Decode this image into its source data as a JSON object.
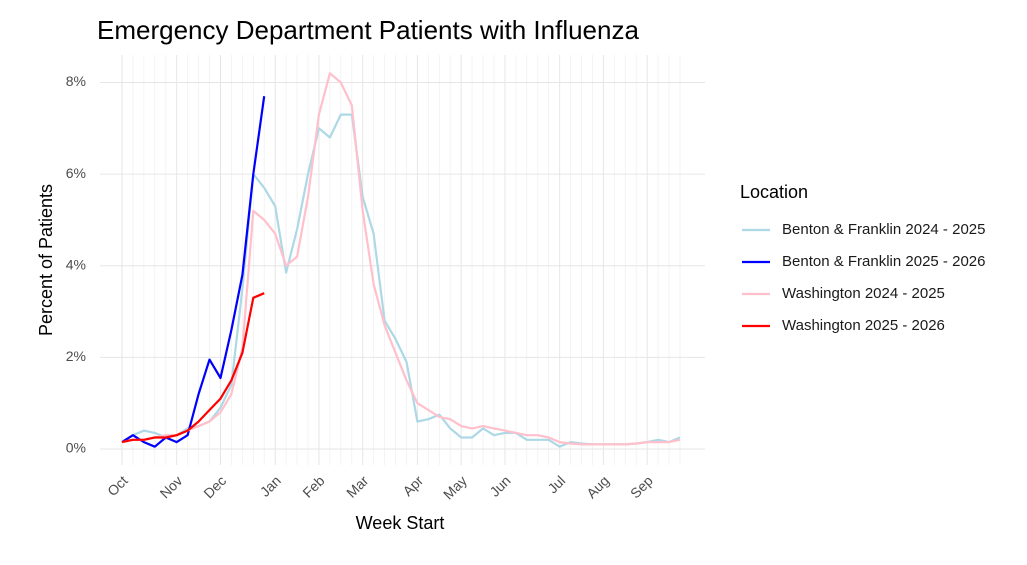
{
  "chart_data": {
    "type": "line",
    "title": "Emergency Department Patients with Influenza",
    "x_label": "Week Start",
    "y_label": "Percent of Patients",
    "legend_title": "Location",
    "grid": true,
    "legend_position": "right",
    "categories": [
      "Oct",
      null,
      null,
      null,
      null,
      "Nov",
      null,
      null,
      null,
      "Dec",
      null,
      null,
      null,
      null,
      "Jan",
      null,
      null,
      null,
      "Feb",
      null,
      null,
      null,
      "Mar",
      null,
      null,
      null,
      null,
      "Apr",
      null,
      null,
      null,
      "May",
      null,
      null,
      null,
      "Jun",
      null,
      null,
      null,
      null,
      "Jul",
      null,
      null,
      null,
      "Aug",
      null,
      null,
      null,
      "Sep",
      null,
      null,
      null
    ],
    "ylim": [
      -0.35,
      8.6
    ],
    "yticks": [
      {
        "value": 0,
        "label": "0%"
      },
      {
        "value": 2,
        "label": "2%"
      },
      {
        "value": 4,
        "label": "4%"
      },
      {
        "value": 6,
        "label": "6%"
      },
      {
        "value": 8,
        "label": "8%"
      }
    ],
    "series": [
      {
        "name": "Benton & Franklin 2024 - 2025",
        "color": "#add8e6",
        "values": [
          0.15,
          0.3,
          0.4,
          0.35,
          0.25,
          0.3,
          0.45,
          0.5,
          0.6,
          0.9,
          1.4,
          3.5,
          6.0,
          5.7,
          5.3,
          3.85,
          4.8,
          6.0,
          7.0,
          6.8,
          7.3,
          7.3,
          5.5,
          4.7,
          2.8,
          2.4,
          1.9,
          0.6,
          0.65,
          0.75,
          0.45,
          0.25,
          0.25,
          0.45,
          0.3,
          0.35,
          0.35,
          0.2,
          0.2,
          0.2,
          0.05,
          0.15,
          0.12,
          0.1,
          0.1,
          0.1,
          0.1,
          0.12,
          0.15,
          0.2,
          0.15,
          0.25
        ]
      },
      {
        "name": "Benton & Franklin 2025 - 2026",
        "color": "#0000ff",
        "values": [
          0.15,
          0.3,
          0.15,
          0.05,
          0.25,
          0.15,
          0.3,
          1.2,
          1.95,
          1.55,
          2.6,
          3.8,
          6.0,
          7.7,
          null,
          null,
          null,
          null,
          null,
          null,
          null,
          null,
          null,
          null,
          null,
          null,
          null,
          null,
          null,
          null,
          null,
          null,
          null,
          null,
          null,
          null,
          null,
          null,
          null,
          null,
          null,
          null,
          null,
          null,
          null,
          null,
          null,
          null,
          null,
          null,
          null,
          null
        ]
      },
      {
        "name": "Washington 2024 - 2025",
        "color": "#ffc0cb",
        "values": [
          0.15,
          0.2,
          0.2,
          0.25,
          0.3,
          0.3,
          0.4,
          0.5,
          0.6,
          0.8,
          1.2,
          2.2,
          5.2,
          5.0,
          4.7,
          4.0,
          4.2,
          5.5,
          7.3,
          8.2,
          8.0,
          7.5,
          5.2,
          3.6,
          2.7,
          2.1,
          1.5,
          1.0,
          0.85,
          0.7,
          0.65,
          0.5,
          0.45,
          0.5,
          0.45,
          0.4,
          0.35,
          0.3,
          0.3,
          0.25,
          0.15,
          0.12,
          0.1,
          0.1,
          0.1,
          0.1,
          0.1,
          0.12,
          0.15,
          0.15,
          0.15,
          0.2
        ]
      },
      {
        "name": "Washington 2025 - 2026",
        "color": "#ff0000",
        "values": [
          0.15,
          0.2,
          0.2,
          0.25,
          0.25,
          0.3,
          0.4,
          0.6,
          0.85,
          1.1,
          1.5,
          2.1,
          3.3,
          3.4,
          null,
          null,
          null,
          null,
          null,
          null,
          null,
          null,
          null,
          null,
          null,
          null,
          null,
          null,
          null,
          null,
          null,
          null,
          null,
          null,
          null,
          null,
          null,
          null,
          null,
          null,
          null,
          null,
          null,
          null,
          null,
          null,
          null,
          null,
          null,
          null,
          null,
          null
        ]
      }
    ]
  }
}
